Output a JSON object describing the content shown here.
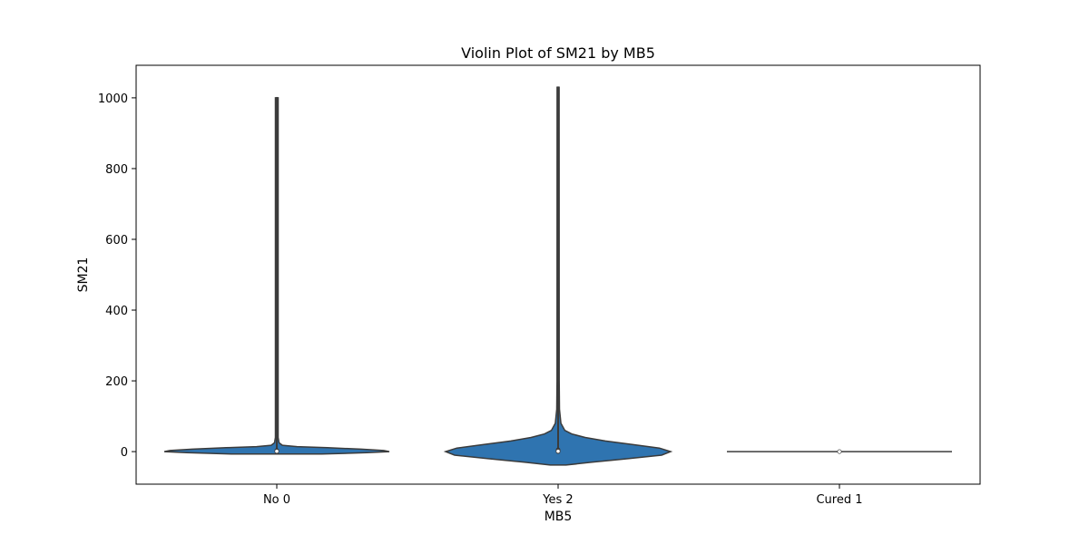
{
  "chart_data": {
    "type": "violin",
    "title": "Violin Plot of SM21 by MB5",
    "xlabel": "MB5",
    "ylabel": "SM21",
    "categories": [
      "No 0",
      "Yes 2",
      "Cured 1"
    ],
    "ylim": [
      -92,
      1092
    ],
    "yticks": [
      0,
      200,
      400,
      600,
      800,
      1000
    ],
    "grid": false,
    "fill_color": "#2f74b0",
    "edge_color": "#3b3b3b",
    "violins": [
      {
        "category": "No 0",
        "min": 0,
        "max": 1000,
        "q1": 0,
        "median": 1,
        "q3": 3,
        "density": [
          [
            -7,
            0.4
          ],
          [
            -3,
            0.8
          ],
          [
            0,
            1.0
          ],
          [
            3,
            0.95
          ],
          [
            7,
            0.75
          ],
          [
            11,
            0.45
          ],
          [
            14,
            0.18
          ],
          [
            18,
            0.05
          ],
          [
            25,
            0.02
          ],
          [
            40,
            0.012
          ],
          [
            1000,
            0.012
          ]
        ]
      },
      {
        "category": "Yes 2",
        "min": 0,
        "max": 1030,
        "q1": 0,
        "median": 1,
        "q3": 5,
        "density": [
          [
            -38,
            0.07
          ],
          [
            -30,
            0.3
          ],
          [
            -20,
            0.62
          ],
          [
            -10,
            0.92
          ],
          [
            0,
            1.0
          ],
          [
            10,
            0.9
          ],
          [
            20,
            0.66
          ],
          [
            30,
            0.42
          ],
          [
            40,
            0.24
          ],
          [
            50,
            0.12
          ],
          [
            60,
            0.06
          ],
          [
            80,
            0.025
          ],
          [
            120,
            0.012
          ],
          [
            200,
            0.01
          ],
          [
            1030,
            0.009
          ]
        ]
      },
      {
        "category": "Cured 1",
        "min": 0,
        "max": 0,
        "q1": 0,
        "median": 0,
        "q3": 0,
        "density": []
      }
    ]
  }
}
